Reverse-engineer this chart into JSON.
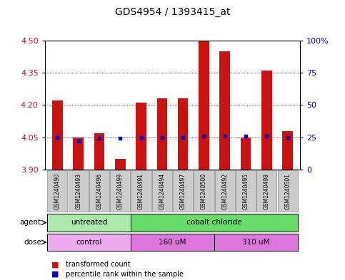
{
  "title": "GDS4954 / 1393415_at",
  "samples": [
    "GSM1240490",
    "GSM1240493",
    "GSM1240496",
    "GSM1240499",
    "GSM1240491",
    "GSM1240494",
    "GSM1240497",
    "GSM1240500",
    "GSM1240492",
    "GSM1240495",
    "GSM1240498",
    "GSM1240501"
  ],
  "transformed_count": [
    4.22,
    4.05,
    4.07,
    3.95,
    4.21,
    4.23,
    4.23,
    4.5,
    4.45,
    4.05,
    4.36,
    4.08
  ],
  "percentile_rank": [
    25,
    22,
    24,
    24,
    25,
    25,
    25,
    26,
    26,
    26,
    26,
    25
  ],
  "ylim_left": [
    3.9,
    4.5
  ],
  "ylim_right": [
    0,
    100
  ],
  "yticks_left": [
    3.9,
    4.05,
    4.2,
    4.35,
    4.5
  ],
  "yticks_right": [
    0,
    25,
    50,
    75,
    100
  ],
  "bar_color": "#cc1111",
  "dot_color": "#0000cc",
  "bar_width": 0.5,
  "baseline": 3.9,
  "agent_groups": [
    {
      "label": "untreated",
      "span": [
        0,
        4
      ],
      "color": "#aaeaaa"
    },
    {
      "label": "cobalt chloride",
      "span": [
        4,
        12
      ],
      "color": "#66dd66"
    }
  ],
  "dose_groups": [
    {
      "label": "control",
      "span": [
        0,
        4
      ],
      "color": "#eeaaee"
    },
    {
      "label": "160 uM",
      "span": [
        4,
        8
      ],
      "color": "#dd77dd"
    },
    {
      "label": "310 uM",
      "span": [
        8,
        12
      ],
      "color": "#dd77dd"
    }
  ],
  "legend_items": [
    {
      "label": "transformed count",
      "color": "#cc1111"
    },
    {
      "label": "percentile rank within the sample",
      "color": "#0000cc"
    }
  ],
  "tick_color_left": "#cc1111",
  "tick_color_right": "#0000bb",
  "title_fontsize": 10,
  "sample_box_color": "#cccccc",
  "sample_box_edge": "#888888"
}
